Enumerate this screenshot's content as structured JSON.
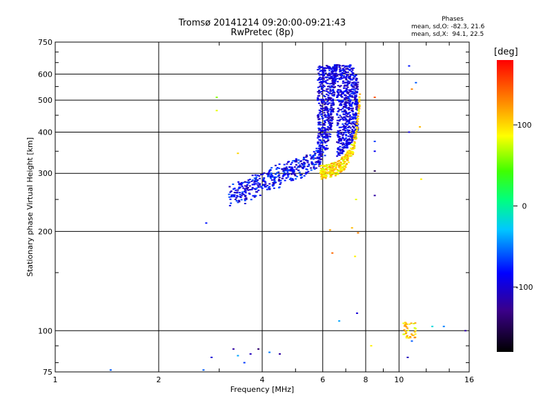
{
  "title_line1": "Tromsø 20141214 09:20:00-09:21:43",
  "title_line2": "RwPretec (8p)",
  "phases": {
    "header": "Phases",
    "line_o": "mean, sd,O: -82.3, 21.6",
    "line_x": "mean, sd,X:  94.1, 22.5"
  },
  "colorbar": {
    "unit": "[deg]",
    "range": [
      -180,
      180
    ],
    "tick_labels": [
      "100",
      "0",
      "-100"
    ],
    "tick_values": [
      100,
      0,
      -100
    ]
  },
  "chart_data": {
    "type": "scatter",
    "xlabel": "Frequency [MHz]",
    "ylabel": "Stationary phase Virtual Height [km]",
    "x_scale": "log",
    "y_scale": "log",
    "xlim": [
      1,
      16
    ],
    "ylim": [
      75,
      750
    ],
    "x_ticks": [
      1,
      2,
      4,
      6,
      8,
      10,
      16
    ],
    "x_tick_labels": [
      "1",
      "2",
      "4",
      "6",
      "8",
      "10",
      "16"
    ],
    "y_ticks": [
      75,
      100,
      200,
      300,
      400,
      500,
      600,
      750
    ],
    "y_tick_labels": [
      "75",
      "100",
      "200",
      "300",
      "400",
      "500",
      "600",
      "750"
    ],
    "grid": true,
    "color_by": "phase [deg]",
    "o_trace_curve": [
      [
        3.2,
        245
      ],
      [
        3.6,
        252
      ],
      [
        4.0,
        265
      ],
      [
        4.5,
        280
      ],
      [
        5.0,
        292
      ],
      [
        5.5,
        305
      ],
      [
        5.9,
        320
      ],
      [
        6.2,
        350
      ],
      [
        6.4,
        420
      ],
      [
        6.5,
        520
      ],
      [
        6.6,
        640
      ]
    ],
    "x_trace_curve": [
      [
        5.9,
        297
      ],
      [
        6.2,
        298
      ],
      [
        6.6,
        305
      ],
      [
        7.0,
        320
      ],
      [
        7.3,
        345
      ],
      [
        7.5,
        380
      ],
      [
        7.6,
        440
      ],
      [
        7.7,
        500
      ]
    ],
    "scattered_points": [
      {
        "x": 2.95,
        "y": 510,
        "phase": 60
      },
      {
        "x": 2.95,
        "y": 465,
        "phase": 80
      },
      {
        "x": 3.4,
        "y": 345,
        "phase": 100
      },
      {
        "x": 2.75,
        "y": 212,
        "phase": -80
      },
      {
        "x": 1.45,
        "y": 76,
        "phase": -60
      },
      {
        "x": 2.7,
        "y": 76,
        "phase": -60
      },
      {
        "x": 2.85,
        "y": 83,
        "phase": -100
      },
      {
        "x": 3.3,
        "y": 88,
        "phase": -120
      },
      {
        "x": 3.4,
        "y": 84,
        "phase": -40
      },
      {
        "x": 3.55,
        "y": 80,
        "phase": -70
      },
      {
        "x": 3.7,
        "y": 85,
        "phase": -110
      },
      {
        "x": 3.9,
        "y": 88,
        "phase": -140
      },
      {
        "x": 4.2,
        "y": 86,
        "phase": -50
      },
      {
        "x": 4.5,
        "y": 85,
        "phase": -120
      },
      {
        "x": 6.3,
        "y": 202,
        "phase": 120
      },
      {
        "x": 6.4,
        "y": 172,
        "phase": 140
      },
      {
        "x": 6.7,
        "y": 107,
        "phase": -40
      },
      {
        "x": 7.3,
        "y": 205,
        "phase": 110
      },
      {
        "x": 7.45,
        "y": 168,
        "phase": 90
      },
      {
        "x": 7.5,
        "y": 250,
        "phase": 80
      },
      {
        "x": 7.55,
        "y": 113,
        "phase": -100
      },
      {
        "x": 7.6,
        "y": 198,
        "phase": 130
      },
      {
        "x": 8.3,
        "y": 90,
        "phase": 90
      },
      {
        "x": 8.5,
        "y": 350,
        "phase": -90
      },
      {
        "x": 8.5,
        "y": 375,
        "phase": -70
      },
      {
        "x": 8.5,
        "y": 510,
        "phase": 150
      },
      {
        "x": 8.5,
        "y": 305,
        "phase": -150
      },
      {
        "x": 8.5,
        "y": 257,
        "phase": -120
      },
      {
        "x": 10.7,
        "y": 635,
        "phase": -80
      },
      {
        "x": 10.9,
        "y": 540,
        "phase": 130
      },
      {
        "x": 11.2,
        "y": 565,
        "phase": -60
      },
      {
        "x": 11.5,
        "y": 415,
        "phase": 110
      },
      {
        "x": 11.6,
        "y": 288,
        "phase": 90
      },
      {
        "x": 10.7,
        "y": 400,
        "phase": -100
      },
      {
        "x": 10.6,
        "y": 83,
        "phase": -110
      },
      {
        "x": 10.9,
        "y": 93,
        "phase": -60
      },
      {
        "x": 12.5,
        "y": 103,
        "phase": -20
      },
      {
        "x": 13.5,
        "y": 103,
        "phase": -50
      },
      {
        "x": 15.6,
        "y": 100,
        "phase": -120
      }
    ],
    "cluster_points": [
      {
        "x_range": [
          10.3,
          11.2
        ],
        "y_range": [
          95,
          106
        ],
        "phase_range": [
          70,
          130
        ]
      }
    ]
  }
}
